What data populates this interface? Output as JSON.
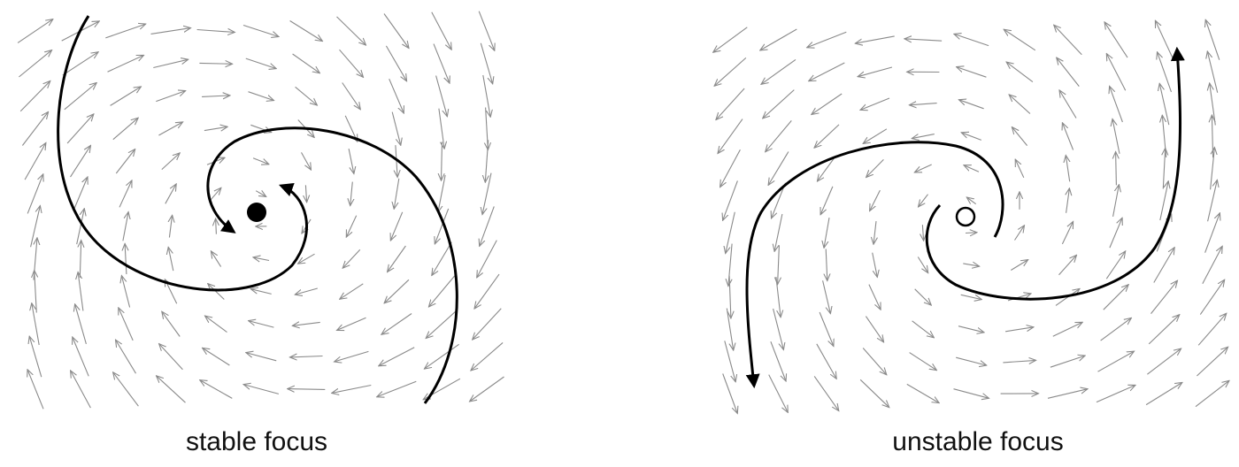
{
  "panels": [
    {
      "id": "left",
      "caption": "stable focus",
      "fixed_point": "filled"
    },
    {
      "id": "right",
      "caption": "unstable focus",
      "fixed_point": "open"
    }
  ],
  "colors": {
    "arrow": "#8a8a8a",
    "trajectory": "#000000",
    "background": "#ffffff"
  }
}
